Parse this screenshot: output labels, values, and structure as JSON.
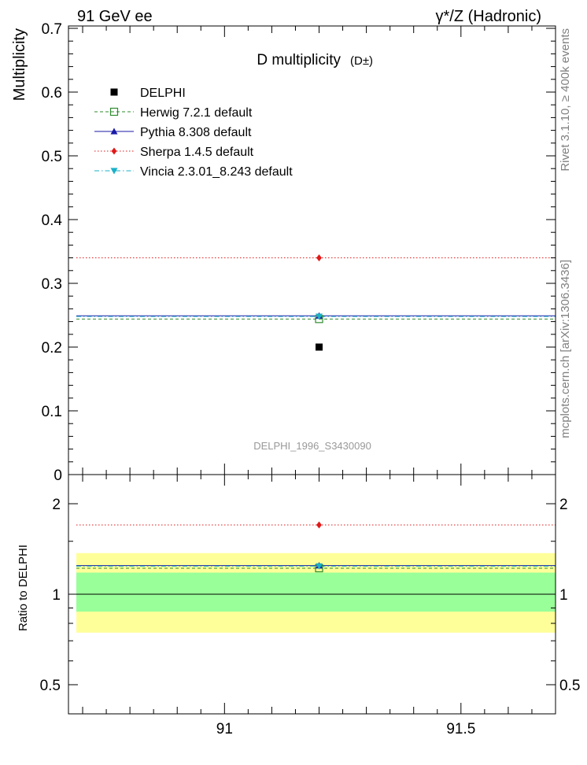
{
  "header": {
    "left": "91 GeV ee",
    "right": "γ*/Z (Hadronic)"
  },
  "side_labels": {
    "top": "Rivet 3.1.10, ≥ 400k events",
    "bottom": "mcplots.cern.ch [arXiv:1306.3436]"
  },
  "chart_data": [
    {
      "type": "scatter",
      "title": "D multiplicity",
      "title_suffix": "(D±)",
      "ylabel": "Multiplicity",
      "xlabel": "",
      "watermark": "DELPHI_1996_S3430090",
      "xlim": [
        90.67,
        91.7
      ],
      "ylim": [
        0,
        0.7
      ],
      "yticks": [
        "0",
        "0.1",
        "0.2",
        "0.3",
        "0.4",
        "0.5",
        "0.6",
        "0.7"
      ],
      "legend_position": "top-left",
      "data_point": {
        "name": "DELPHI",
        "x": 91.2,
        "y": 0.2,
        "color": "#000000"
      },
      "series": [
        {
          "name": "Herwig 7.2.1 default",
          "x": 91.2,
          "y": 0.244,
          "color": "#2e8b2e",
          "linestyle": "dashed",
          "marker": "open-square"
        },
        {
          "name": "Pythia 8.308 default",
          "x": 91.2,
          "y": 0.249,
          "color": "#1a1aa8",
          "linestyle": "solid",
          "marker": "triangle-up"
        },
        {
          "name": "Sherpa 1.4.5 default",
          "x": 91.2,
          "y": 0.34,
          "color": "#e01818",
          "linestyle": "dotted",
          "marker": "diamond"
        },
        {
          "name": "Vincia 2.3.01_8.243 default",
          "x": 91.2,
          "y": 0.248,
          "color": "#1ab0c8",
          "linestyle": "dashdot",
          "marker": "triangle-down"
        }
      ]
    },
    {
      "type": "scatter",
      "ylabel": "Ratio to DELPHI",
      "xlabel": "",
      "xlim": [
        90.67,
        91.7
      ],
      "ylim": [
        0.4,
        2.5
      ],
      "ylog": true,
      "xticks": [
        "91",
        "91.5"
      ],
      "xtick_values": [
        91,
        91.5
      ],
      "yticks": [
        "0.5",
        "1",
        "2"
      ],
      "ytick_values": [
        0.5,
        1,
        2
      ],
      "bands": [
        {
          "name": "stat",
          "low": 0.875,
          "high": 1.18,
          "color": "#99ff99"
        },
        {
          "name": "total",
          "low": 0.745,
          "high": 1.37,
          "color": "#ffff99"
        }
      ],
      "reference": 1.0,
      "series": [
        {
          "name": "Herwig 7.2.1 default",
          "y": 1.22,
          "color": "#2e8b2e"
        },
        {
          "name": "Pythia 8.308 default",
          "y": 1.245,
          "color": "#1a1aa8"
        },
        {
          "name": "Sherpa 1.4.5 default",
          "y": 1.7,
          "color": "#e01818"
        },
        {
          "name": "Vincia 2.3.01_8.243 default",
          "y": 1.24,
          "color": "#1ab0c8"
        }
      ]
    }
  ]
}
